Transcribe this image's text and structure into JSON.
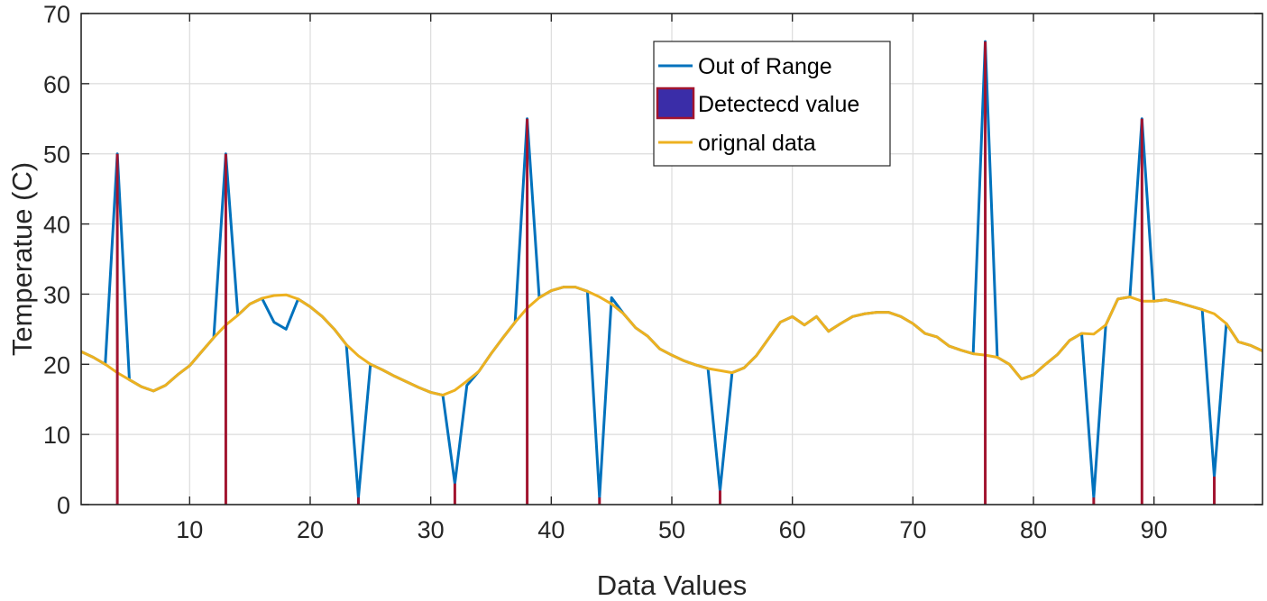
{
  "chart_data": {
    "type": "line",
    "xlabel": "Data Values",
    "ylabel": "Temperatue (C)",
    "xlim": [
      1,
      99
    ],
    "ylim": [
      0,
      70
    ],
    "grid": true,
    "legend_location": "top-center",
    "x_ticks": [
      10,
      20,
      30,
      40,
      50,
      60,
      70,
      80,
      90
    ],
    "y_ticks": [
      0,
      10,
      20,
      30,
      40,
      50,
      60,
      70
    ],
    "x": [
      1,
      2,
      3,
      4,
      5,
      6,
      7,
      8,
      9,
      10,
      11,
      12,
      13,
      14,
      15,
      16,
      17,
      18,
      19,
      20,
      21,
      22,
      23,
      24,
      25,
      26,
      27,
      28,
      29,
      30,
      31,
      32,
      33,
      34,
      35,
      36,
      37,
      38,
      39,
      40,
      41,
      42,
      43,
      44,
      45,
      46,
      47,
      48,
      49,
      50,
      51,
      52,
      53,
      54,
      55,
      56,
      57,
      58,
      59,
      60,
      61,
      62,
      63,
      64,
      65,
      66,
      67,
      68,
      69,
      70,
      71,
      72,
      73,
      74,
      75,
      76,
      77,
      78,
      79,
      80,
      81,
      82,
      83,
      84,
      85,
      86,
      87,
      88,
      89,
      90,
      91,
      92,
      93,
      94,
      95,
      96,
      97,
      98,
      99
    ],
    "series": [
      {
        "name": "Out of Range",
        "color": "#0072BD",
        "style": "line",
        "values": [
          21.8,
          21.0,
          20.0,
          50.0,
          17.8,
          16.8,
          16.2,
          17.0,
          18.5,
          19.8,
          21.8,
          23.8,
          50.0,
          27.0,
          28.6,
          29.4,
          26.0,
          25.0,
          29.3,
          28.2,
          26.8,
          25.0,
          22.8,
          1.0,
          20.0,
          19.2,
          18.3,
          17.5,
          16.7,
          16.0,
          15.6,
          3.0,
          17.0,
          19.0,
          21.5,
          23.8,
          26.0,
          55.0,
          29.5,
          30.5,
          31.0,
          31.0,
          30.4,
          1.0,
          29.5,
          27.2,
          25.2,
          24.0,
          22.2,
          21.3,
          20.5,
          19.9,
          19.4,
          2.0,
          18.8,
          19.5,
          21.2,
          23.6,
          26.0,
          26.8,
          25.6,
          26.8,
          24.7,
          25.8,
          26.8,
          27.2,
          27.4,
          27.4,
          26.8,
          25.8,
          24.4,
          23.9,
          22.6,
          22.0,
          21.5,
          66.0,
          21.0,
          20.0,
          17.9,
          18.5,
          20.0,
          21.4,
          23.4,
          24.4,
          1.0,
          25.6,
          29.3,
          29.6,
          55.0,
          29.0,
          29.2,
          28.8,
          28.3,
          27.8,
          4.0,
          25.8,
          23.2,
          22.7,
          21.9
        ]
      },
      {
        "name": "Detectecd value",
        "color": "#A2142F",
        "fill": "#3A2DA8",
        "style": "stem",
        "points": [
          {
            "x": 4,
            "y": 50
          },
          {
            "x": 13,
            "y": 50
          },
          {
            "x": 24,
            "y": 1
          },
          {
            "x": 32,
            "y": 3
          },
          {
            "x": 38,
            "y": 55
          },
          {
            "x": 44,
            "y": 1
          },
          {
            "x": 54,
            "y": 2
          },
          {
            "x": 76,
            "y": 66
          },
          {
            "x": 85,
            "y": 1
          },
          {
            "x": 89,
            "y": 55
          },
          {
            "x": 95,
            "y": 4
          }
        ]
      },
      {
        "name": "orignal data",
        "color": "#EDB120",
        "style": "line",
        "values": [
          21.8,
          21.0,
          20.0,
          18.8,
          17.8,
          16.8,
          16.2,
          17.0,
          18.5,
          19.8,
          21.8,
          23.8,
          25.6,
          27.0,
          28.6,
          29.4,
          29.8,
          29.9,
          29.3,
          28.2,
          26.8,
          25.0,
          22.8,
          21.2,
          20.0,
          19.2,
          18.3,
          17.5,
          16.7,
          16.0,
          15.6,
          16.3,
          17.6,
          19.0,
          21.5,
          23.8,
          26.0,
          28.0,
          29.5,
          30.5,
          31.0,
          31.0,
          30.4,
          29.6,
          28.6,
          27.2,
          25.2,
          24.0,
          22.2,
          21.3,
          20.5,
          19.9,
          19.4,
          19.1,
          18.8,
          19.5,
          21.2,
          23.6,
          26.0,
          26.8,
          25.6,
          26.8,
          24.7,
          25.8,
          26.8,
          27.2,
          27.4,
          27.4,
          26.8,
          25.8,
          24.4,
          23.9,
          22.6,
          22.0,
          21.5,
          21.3,
          21.0,
          20.0,
          17.9,
          18.5,
          20.0,
          21.4,
          23.4,
          24.4,
          24.3,
          25.6,
          29.3,
          29.6,
          29.0,
          29.0,
          29.2,
          28.8,
          28.3,
          27.8,
          27.2,
          25.8,
          23.2,
          22.7,
          21.9
        ]
      }
    ]
  }
}
